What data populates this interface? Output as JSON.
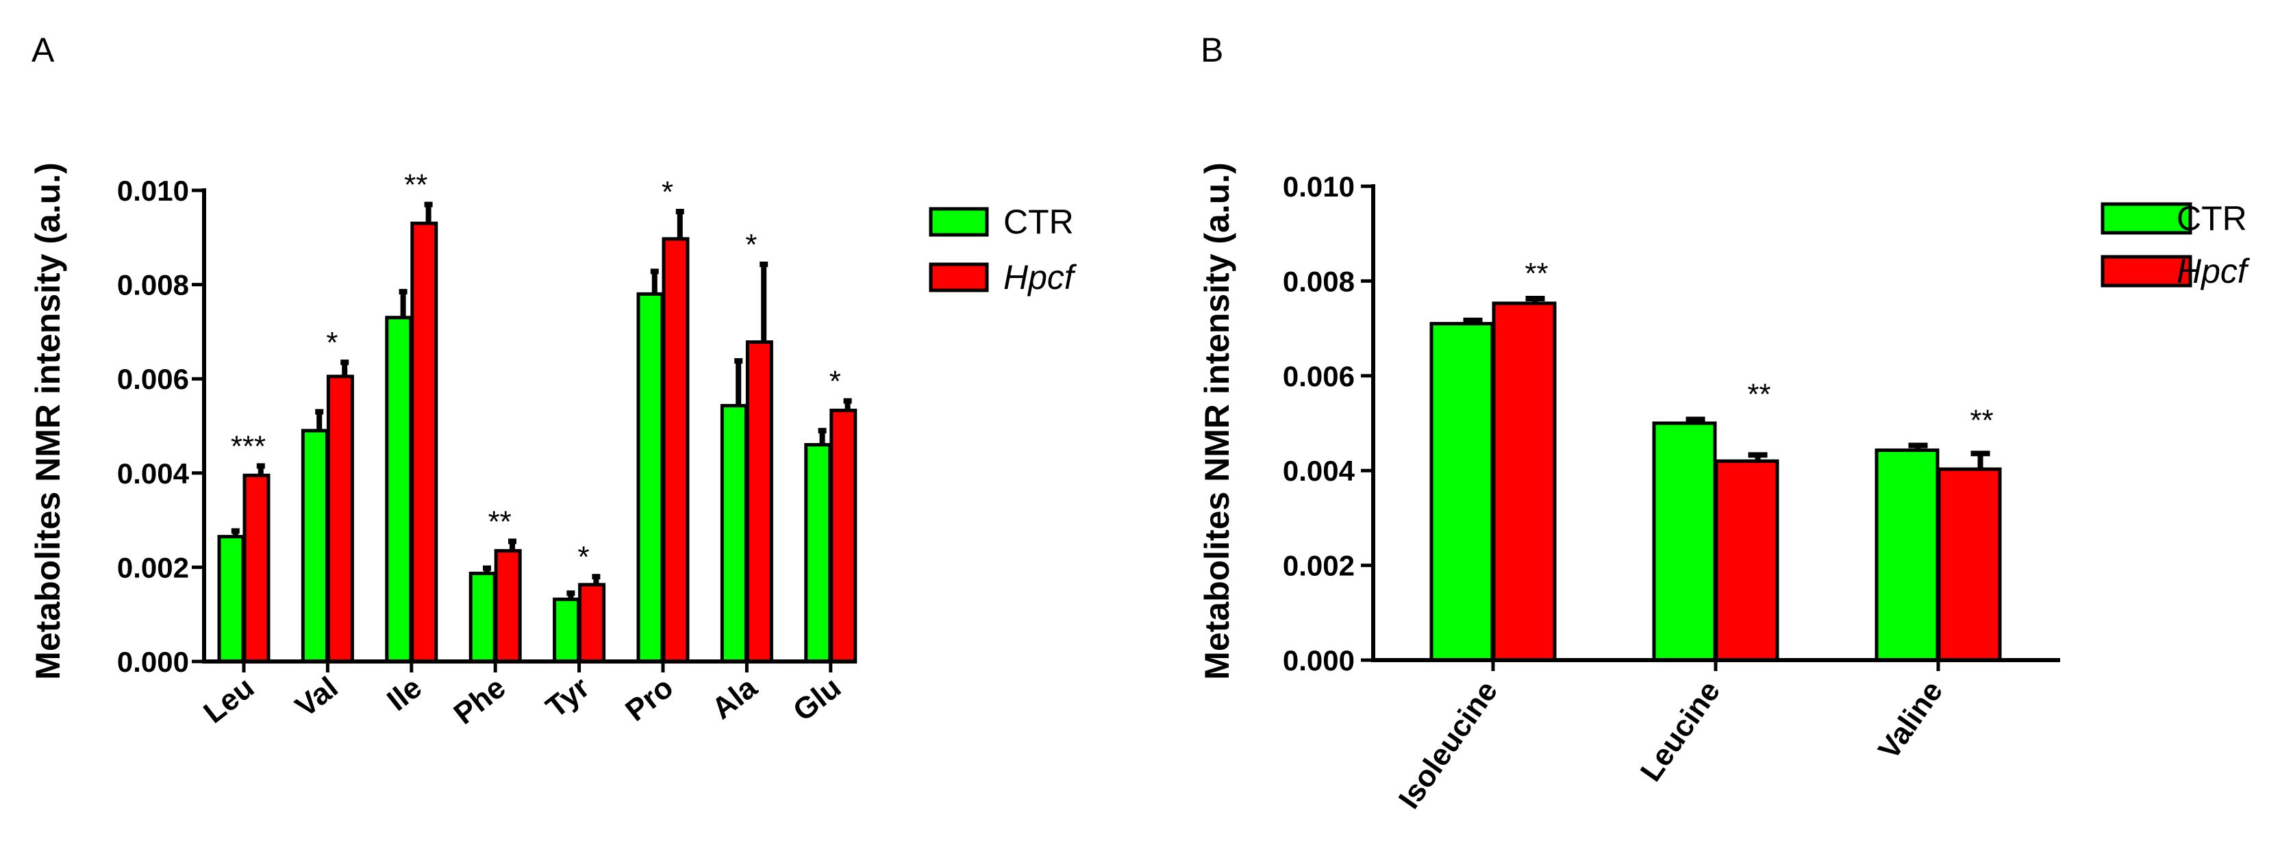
{
  "colors": {
    "ctr": "#00ff00",
    "hpcf": "#ff0000",
    "stroke": "#000000"
  },
  "chart_data": [
    {
      "panel_label": "A",
      "type": "bar",
      "ylabel": "Metabolites NMR intensity (a.u.)",
      "ylim": [
        0,
        0.01
      ],
      "yticks": [
        "0.000",
        "0.002",
        "0.004",
        "0.006",
        "0.008",
        "0.010"
      ],
      "categories": [
        "Leu",
        "Val",
        "Ile",
        "Phe",
        "Tyr",
        "Pro",
        "Ala",
        "Glu"
      ],
      "series": [
        {
          "name": "CTR",
          "values": [
            0.00265,
            0.0049,
            0.0073,
            0.00187,
            0.00132,
            0.0078,
            0.00543,
            0.0046
          ],
          "errors": [
            0.00012,
            0.0004,
            0.00055,
            0.00011,
            0.00013,
            0.00048,
            0.00095,
            0.0003
          ]
        },
        {
          "name": "Hpcf",
          "values": [
            0.00395,
            0.00605,
            0.0093,
            0.00235,
            0.00163,
            0.00897,
            0.00678,
            0.00533
          ],
          "errors": [
            0.0002,
            0.0003,
            0.0004,
            0.0002,
            0.00017,
            0.00058,
            0.00165,
            0.0002
          ]
        }
      ],
      "significance": [
        "***",
        "*",
        "**",
        "**",
        "*",
        "*",
        "*",
        "*"
      ],
      "legend": {
        "labels": [
          "CTR",
          "Hpcf"
        ],
        "position": "right"
      }
    },
    {
      "panel_label": "B",
      "type": "bar",
      "ylabel": "Metabolites NMR intensity (a.u.)",
      "ylim": [
        0,
        0.01
      ],
      "yticks": [
        "0.000",
        "0.002",
        "0.004",
        "0.006",
        "0.008",
        "0.010"
      ],
      "categories": [
        "Isoleucine",
        "Leucine",
        "Valine"
      ],
      "series": [
        {
          "name": "CTR",
          "values": [
            0.0071,
            0.005,
            0.00443
          ],
          "errors": [
            7e-05,
            8e-05,
            0.0001
          ]
        },
        {
          "name": "Hpcf",
          "values": [
            0.00753,
            0.0042,
            0.00403
          ],
          "errors": [
            0.0001,
            0.00013,
            0.00033
          ]
        }
      ],
      "significance": [
        "**",
        "**",
        "**"
      ],
      "legend": {
        "labels": [
          "CTR",
          "Hpcf"
        ],
        "position": "right"
      }
    }
  ]
}
